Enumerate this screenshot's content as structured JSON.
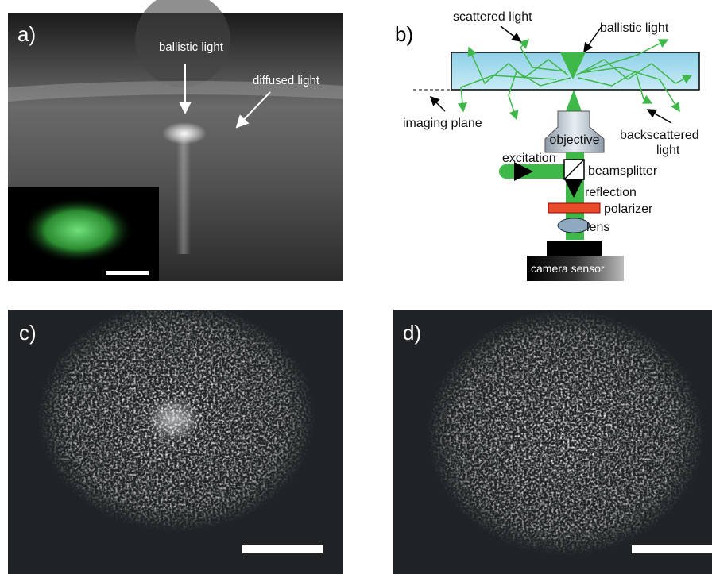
{
  "panels": {
    "a": {
      "label": "a)",
      "ballistic": "ballistic light",
      "diffused": "diffused light"
    },
    "b": {
      "label": "b)",
      "scattered": "scattered light",
      "ballistic": "ballistic light",
      "imaging_plane": "imaging plane",
      "objective": "objective",
      "backscattered": [
        "backscattered",
        "light"
      ],
      "excitation": "excitation",
      "beamsplitter": "beamsplitter",
      "reflection": "reflection",
      "polarizer": "polarizer",
      "lens": "lens",
      "camera": "camera sensor"
    },
    "c": {
      "label": "c)"
    },
    "d": {
      "label": "d)"
    }
  }
}
